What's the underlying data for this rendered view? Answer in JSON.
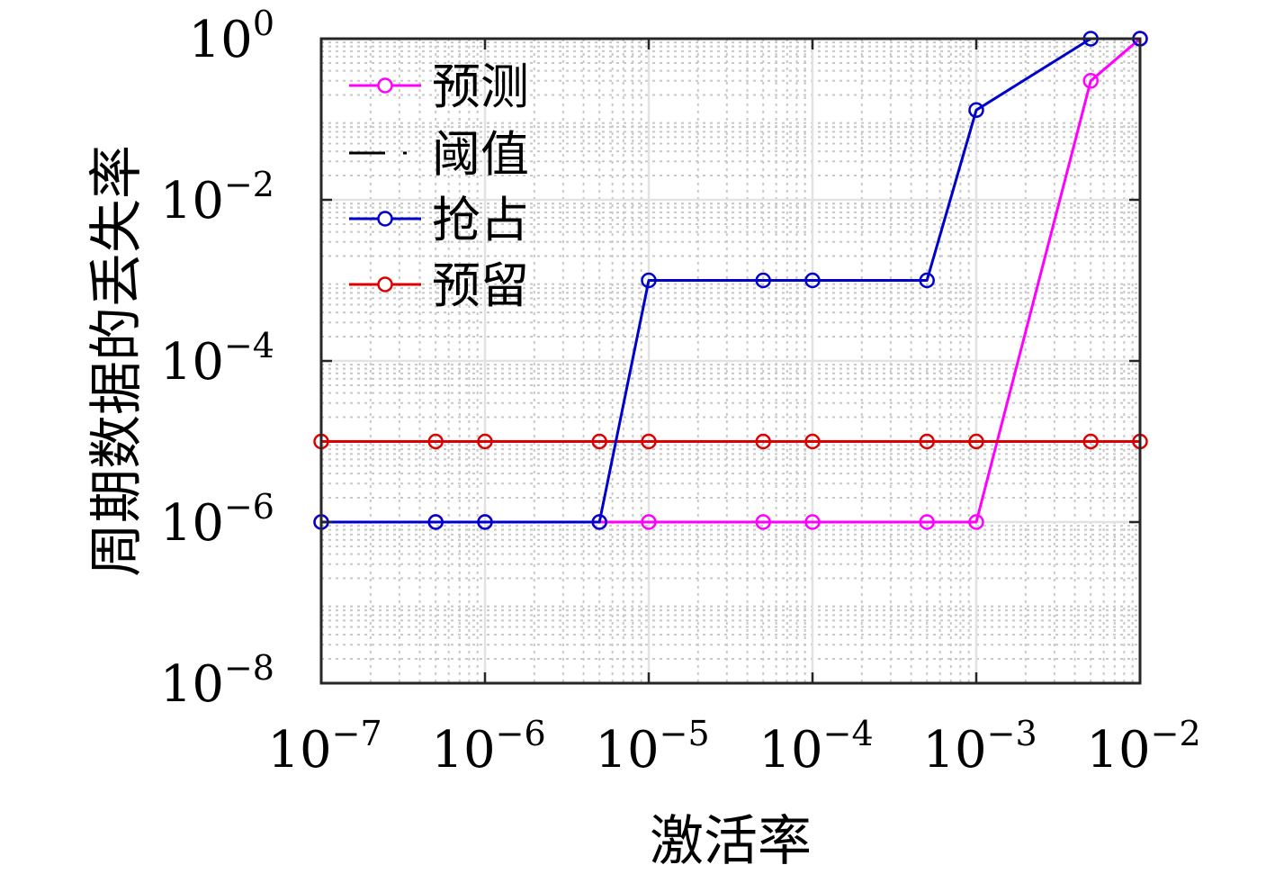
{
  "chart_data": {
    "type": "line",
    "xscale": "log",
    "yscale": "log",
    "xlim": [
      1e-07,
      0.01
    ],
    "ylim": [
      1e-08,
      1
    ],
    "xlabel": "激活率",
    "ylabel": "周期数据的丢失率",
    "grid": true,
    "minor_grid": true,
    "legend_position": "top-left",
    "x_ticks": [
      1e-07,
      1e-06,
      1e-05,
      0.0001,
      0.001,
      0.01
    ],
    "x_tick_labels": [
      {
        "base": "10",
        "exp": "−7"
      },
      {
        "base": "10",
        "exp": "−6"
      },
      {
        "base": "10",
        "exp": "−5"
      },
      {
        "base": "10",
        "exp": "−4"
      },
      {
        "base": "10",
        "exp": "−3"
      },
      {
        "base": "10",
        "exp": "−2"
      }
    ],
    "y_ticks": [
      1e-08,
      1e-06,
      0.0001,
      0.01,
      1
    ],
    "y_tick_labels": [
      {
        "base": "10",
        "exp": "−8"
      },
      {
        "base": "10",
        "exp": "−6"
      },
      {
        "base": "10",
        "exp": "−4"
      },
      {
        "base": "10",
        "exp": "−2"
      },
      {
        "base": "10",
        "exp": "0"
      }
    ],
    "x": [
      1e-07,
      5e-07,
      1e-06,
      5e-06,
      1e-05,
      5e-05,
      0.0001,
      0.0005,
      0.001,
      0.005,
      0.01
    ],
    "series": [
      {
        "name": "预测",
        "color": "#ff00ff",
        "marker": "circle",
        "line": "solid",
        "values": [
          1e-06,
          1e-06,
          1e-06,
          1e-06,
          1e-06,
          1e-06,
          1e-06,
          1e-06,
          1e-06,
          0.3,
          1.0
        ]
      },
      {
        "name": "阈值",
        "color": "#000000",
        "marker": "none",
        "line": "dash-dot",
        "values": [
          1e-05,
          1e-05,
          1e-05,
          1e-05,
          1e-05,
          1e-05,
          1e-05,
          1e-05,
          1e-05,
          1e-05,
          1e-05
        ]
      },
      {
        "name": "抢占",
        "color": "#0000cc",
        "marker": "circle",
        "line": "solid",
        "values": [
          1e-06,
          1e-06,
          1e-06,
          1e-06,
          0.001,
          0.001,
          0.001,
          0.001,
          0.13,
          1.0,
          1.0
        ]
      },
      {
        "name": "预留",
        "color": "#dd0000",
        "marker": "circle",
        "line": "solid",
        "values": [
          1e-05,
          1e-05,
          1e-05,
          1e-05,
          1e-05,
          1e-05,
          1e-05,
          1e-05,
          1e-05,
          1e-05,
          1e-05
        ]
      }
    ],
    "draw_order": [
      1,
      0,
      3,
      2
    ]
  }
}
